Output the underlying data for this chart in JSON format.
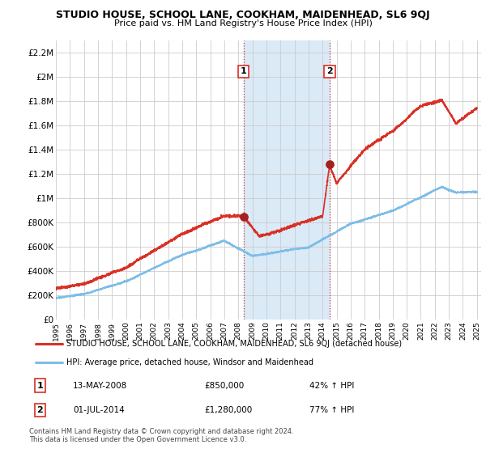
{
  "title": "STUDIO HOUSE, SCHOOL LANE, COOKHAM, MAIDENHEAD, SL6 9QJ",
  "subtitle": "Price paid vs. HM Land Registry's House Price Index (HPI)",
  "ylim": [
    0,
    2300000
  ],
  "yticks": [
    0,
    200000,
    400000,
    600000,
    800000,
    1000000,
    1200000,
    1400000,
    1600000,
    1800000,
    2000000,
    2200000
  ],
  "ytick_labels": [
    "£0",
    "£200K",
    "£400K",
    "£600K",
    "£800K",
    "£1M",
    "£1.2M",
    "£1.4M",
    "£1.6M",
    "£1.8M",
    "£2M",
    "£2.2M"
  ],
  "sale1_date": 2008.37,
  "sale1_price": 850000,
  "sale2_date": 2014.5,
  "sale2_price": 1280000,
  "sale1_text": "13-MAY-2008",
  "sale1_amount": "£850,000",
  "sale1_pct": "42% ↑ HPI",
  "sale2_text": "01-JUL-2014",
  "sale2_amount": "£1,280,000",
  "sale2_pct": "77% ↑ HPI",
  "hpi_line_color": "#7dbde8",
  "price_line_color": "#d93025",
  "sale_marker_color": "#a52020",
  "shaded_region_color": "#daeaf7",
  "grid_color": "#cccccc",
  "legend_line1": "STUDIO HOUSE, SCHOOL LANE, COOKHAM, MAIDENHEAD, SL6 9QJ (detached house)",
  "legend_line2": "HPI: Average price, detached house, Windsor and Maidenhead",
  "footer1": "Contains HM Land Registry data © Crown copyright and database right 2024.",
  "footer2": "This data is licensed under the Open Government Licence v3.0."
}
